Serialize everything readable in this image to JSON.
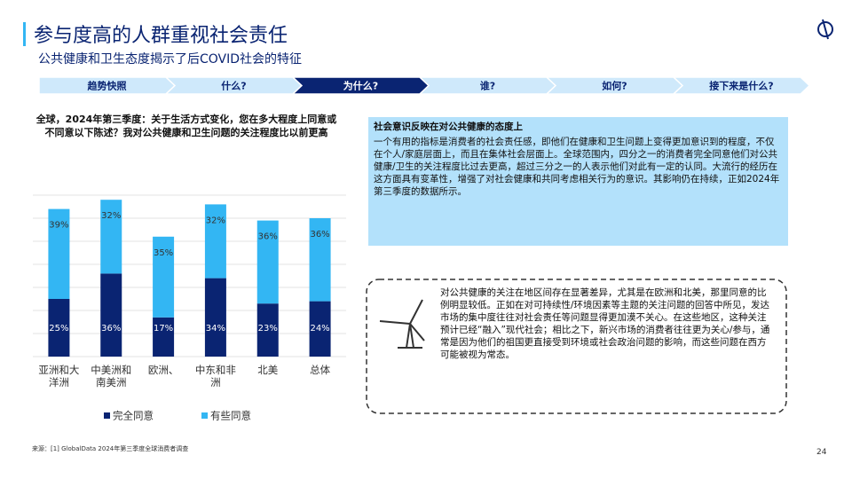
{
  "header": {
    "title": "参与度高的人群重视社会责任",
    "subtitle": "公共健康和卫生态度揭示了后COVID社会的特征"
  },
  "nav": [
    "趋势快照",
    "什么?",
    "为什么?",
    "谁?",
    "如何?",
    "接下来是什么?"
  ],
  "chart_data": {
    "type": "stacked_bar",
    "title": "全球，2024年第三季度：关于生活方式变化，您在多大程度上同意或不同意以下陈述？我对公共健康和卫生问题的关注程度比以前更高",
    "categories": [
      "亚洲和大洋洲",
      "中美洲和南美洲",
      "欧洲、",
      "中东和非洲",
      "北美",
      "总体"
    ],
    "series": [
      {
        "name": "完全同意",
        "color": "#0a2472",
        "values": [
          25,
          36,
          17,
          34,
          23,
          24
        ],
        "value_labels": [
          "25%",
          "36%",
          "17%",
          "34%",
          "23%",
          "24%"
        ]
      },
      {
        "name": "有些同意",
        "color": "#33b6f3",
        "values": [
          39,
          32,
          35,
          32,
          36,
          36
        ],
        "value_labels": [
          "39%",
          "32%",
          "35%",
          "32%",
          "36%",
          "36%"
        ]
      }
    ],
    "ylim": [
      0,
      70
    ],
    "yticks": [
      0,
      10,
      20,
      30,
      40,
      50,
      60,
      70
    ],
    "grid": true,
    "legend": "bottom"
  },
  "insight": {
    "title": "社会意识反映在对公共健康的态度上",
    "body": "一个有用的指标是消费者的社会责任感，即他们在健康和卫生问题上变得更加意识到的程度，不仅在个人/家庭层面上，而且在集体社会层面上。全球范围内，四分之一的消费者完全同意他们对公共健康/卫生的关注程度比过去更高，超过三分之一的人表示他们对此有一定的认同。大流行的经历在这方面具有变革性，增强了对社会健康和共同考虑相关行为的意识。其影响仍在持续，正如2024年第三季度的数据所示。"
  },
  "note": {
    "body": "对公共健康的关注在地区间存在显著差异，尤其是在欧洲和北美，那里同意的比例明显较低。正如在对可持续性/环境因素等主题的关注问题的回答中所见，发达市场的集中度往往对社会责任等问题显得更加漠不关心。在这些地区，这种关注预计已经“融入”现代社会；相比之下，新兴市场的消费者往往更为关心/参与，通常是因为他们的祖国更直接受到环境或社会政治问题的影响，而这些问题在西方可能被视为常态。"
  },
  "footer": {
    "source": "来源：[1] GlobalData 2024年第三季度全球消费者调查",
    "page": "24"
  }
}
